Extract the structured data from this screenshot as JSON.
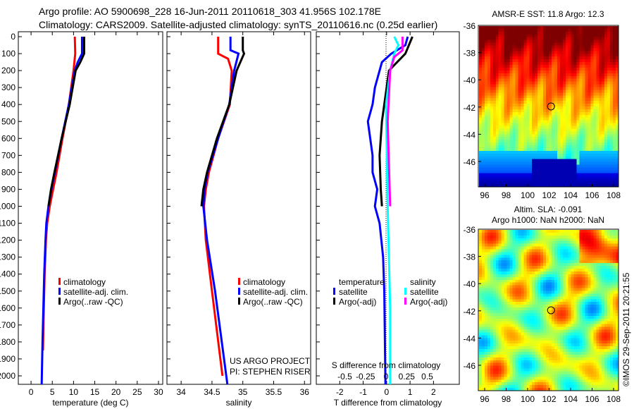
{
  "header": {
    "line1": "Argo profile: AO 5900698_228 16-Jun-2011 20110618_303 41.956S 102.178E",
    "line2": "Climatology: CARS2009. Satellite-adjusted climatology: synTS_20110616.nc (0.25d earlier)"
  },
  "timestamp": "©IMOS 29-Sep-2011 20:21:55",
  "credit": {
    "line1": "US ARGO PROJECT",
    "line2": "PI: STEPHEN RISER"
  },
  "colors": {
    "climatology": "#ff0000",
    "satellite": "#0000ff",
    "argo": "#000000",
    "s_satellite": "#00ffff",
    "s_argo": "#ff00ff"
  },
  "chart_data": [
    {
      "type": "line",
      "id": "temperature",
      "xlabel": "temperature (deg C)",
      "xlim": [
        -3,
        31
      ],
      "ylim": [
        2050,
        0
      ],
      "xticks": [
        0,
        5,
        10,
        15,
        20,
        25,
        30
      ],
      "yticks": [
        0,
        100,
        200,
        300,
        400,
        500,
        600,
        700,
        800,
        900,
        1000,
        1100,
        1200,
        1300,
        1400,
        1500,
        1600,
        1700,
        1800,
        1900,
        2000
      ],
      "legend": [
        "climatology",
        "satellite-adj. clim.",
        "Argo(..raw -QC)"
      ],
      "series": [
        {
          "name": "climatology",
          "color": "#ff0000",
          "depth": [
            0,
            100,
            200,
            400,
            600,
            800,
            900,
            1000,
            1100,
            1200,
            1400,
            1600,
            1850
          ],
          "values": [
            10.3,
            10.4,
            10,
            8.9,
            7.4,
            6,
            5.2,
            4.4,
            3.8,
            3.5,
            3.2,
            3,
            2.8
          ]
        },
        {
          "name": "satellite-adj. clim.",
          "color": "#0000ff",
          "depth": [
            0,
            100,
            150,
            200,
            400,
            600,
            800,
            900,
            1000,
            1100,
            1200,
            1400,
            1600,
            1800,
            2050
          ],
          "values": [
            12,
            12,
            11,
            10.3,
            8.9,
            7.2,
            5.6,
            4.8,
            4.1,
            3.6,
            3.4,
            3.1,
            2.9,
            2.7,
            2.5
          ]
        },
        {
          "name": "Argo(..raw -QC)",
          "color": "#000000",
          "depth": [
            0,
            100,
            150,
            200,
            400,
            600,
            800,
            900,
            1000
          ],
          "values": [
            12.5,
            12.5,
            11.6,
            10.5,
            9.1,
            7.2,
            5.5,
            4.7,
            4.1
          ]
        }
      ]
    },
    {
      "type": "line",
      "id": "salinity",
      "xlabel": "salinity",
      "xlim": [
        33.77,
        36.1
      ],
      "ylim": [
        2050,
        0
      ],
      "xticks": [
        34,
        34.5,
        35,
        35.5,
        36
      ],
      "legend": [
        "climatology",
        "satellite-adj. clim.",
        "Argo(..raw -QC)"
      ],
      "series": [
        {
          "name": "climatology",
          "color": "#ff0000",
          "depth": [
            0,
            100,
            130,
            200,
            400,
            600,
            800,
            900,
            1000,
            1200,
            1500,
            2000
          ],
          "values": [
            34.6,
            34.6,
            34.76,
            34.82,
            34.79,
            34.6,
            34.45,
            34.4,
            34.37,
            34.4,
            34.5,
            34.67
          ]
        },
        {
          "name": "satellite-adj. clim.",
          "color": "#0000ff",
          "depth": [
            0,
            80,
            100,
            200,
            400,
            600,
            800,
            900,
            1000,
            1200,
            1500,
            2050
          ],
          "values": [
            34.8,
            34.8,
            34.93,
            34.86,
            34.78,
            34.6,
            34.43,
            34.38,
            34.36,
            34.42,
            34.55,
            34.75
          ]
        },
        {
          "name": "Argo(..raw -QC)",
          "color": "#000000",
          "depth": [
            0,
            80,
            100,
            150,
            200,
            400,
            600,
            800,
            900,
            1000
          ],
          "values": [
            35,
            35,
            35.02,
            34.96,
            34.9,
            34.78,
            34.58,
            34.42,
            34.36,
            34.33
          ]
        }
      ]
    },
    {
      "type": "line",
      "id": "difference",
      "xlabel": "T difference from climatology",
      "x2label": "S difference from climatology",
      "xlim": [
        -3,
        3.1
      ],
      "x2lim": [
        -0.75,
        0.78
      ],
      "xticks": [
        -2,
        -1,
        0,
        1,
        2
      ],
      "x2ticks": [
        -0.5,
        -0.25,
        0,
        0.25,
        0.5
      ],
      "ylim": [
        2050,
        0
      ],
      "legend": {
        "temperature": [
          "satellite",
          "Argo(-adj)"
        ],
        "salinity": [
          "satellite",
          "Argo(-adj)"
        ],
        "temperature_title": "temperature",
        "salinity_title": "salinity"
      },
      "series": [
        {
          "name": "temperature satellite",
          "axis": "T",
          "color": "#0000ff",
          "depth": [
            0,
            50,
            100,
            150,
            300,
            400,
            500,
            700,
            800,
            900,
            1000,
            1100,
            1300,
            1500,
            2050
          ],
          "values": [
            0.9,
            0.8,
            0.2,
            -0.2,
            -0.5,
            -0.6,
            -0.8,
            -0.6,
            -0.6,
            -0.4,
            -0.5,
            -0.3,
            -0.15,
            -0.1,
            -0.05
          ]
        },
        {
          "name": "temperature Argo(-adj)",
          "axis": "T",
          "color": "#000000",
          "depth": [
            0,
            100,
            200,
            300,
            500,
            700,
            900,
            1000
          ],
          "values": [
            1.1,
            0.8,
            0.1,
            0,
            -0.2,
            -0.3,
            -0.25,
            -0.2
          ]
        },
        {
          "name": "salinity satellite",
          "axis": "S",
          "color": "#00ffff",
          "depth": [
            0,
            50,
            100,
            200,
            400,
            1000,
            1600,
            2050
          ],
          "values": [
            0.1,
            0.15,
            0.1,
            0.05,
            0.0,
            0.02,
            0.05,
            0.05
          ]
        },
        {
          "name": "salinity Argo(-adj)",
          "axis": "S",
          "color": "#ff00ff",
          "depth": [
            0,
            80,
            120,
            200,
            500,
            1000
          ],
          "values": [
            0.2,
            0.2,
            0.1,
            0.05,
            0.02,
            0.05
          ]
        }
      ]
    },
    {
      "type": "heatmap",
      "id": "sst-map",
      "title": "AMSR-E SST: 11.8 Argo: 12.3",
      "xticks": [
        96,
        98,
        100,
        102,
        104,
        106,
        108
      ],
      "yticks": [
        -36,
        -38,
        -40,
        -42,
        -44,
        -46
      ],
      "marker": [
        102.178,
        -41.956
      ]
    },
    {
      "type": "heatmap",
      "id": "sla-map",
      "title": "Altim. SLA: -0.091",
      "subtitle": "Argo h1000: NaN h2000: NaN",
      "xticks": [
        96,
        98,
        100,
        102,
        104,
        106,
        108
      ],
      "yticks": [
        -36,
        -38,
        -40,
        -42,
        -44,
        -46
      ],
      "marker": [
        102.178,
        -41.956
      ]
    }
  ]
}
